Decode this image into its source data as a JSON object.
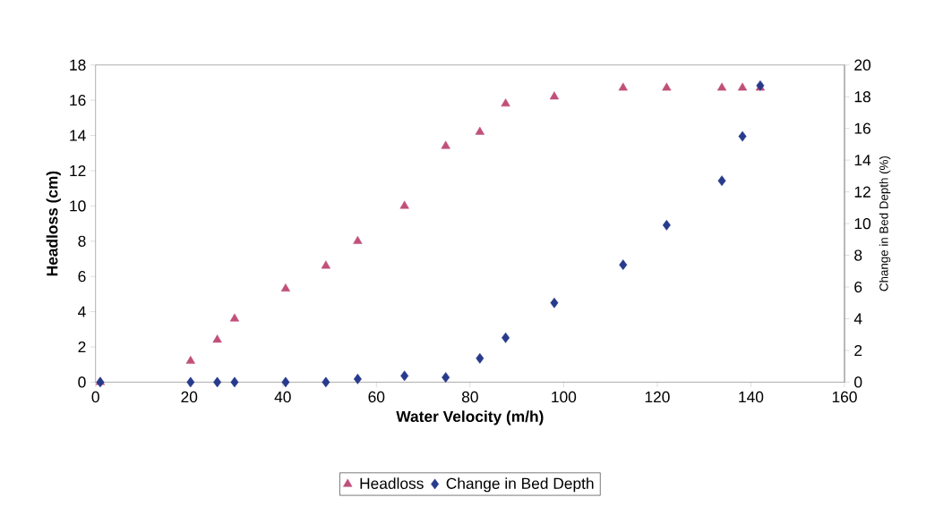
{
  "chart_data": {
    "type": "scatter",
    "xlabel": "Water Velocity (m/h)",
    "ylabel": "Headloss (cm)",
    "y2label": "Change in Bed Depth (%)",
    "xlim": [
      0,
      160
    ],
    "xticks": [
      0,
      20,
      40,
      60,
      80,
      100,
      120,
      140,
      160
    ],
    "ylim": [
      0,
      18
    ],
    "yticks": [
      0,
      2,
      4,
      6,
      8,
      10,
      12,
      14,
      16,
      18
    ],
    "y2lim": [
      0,
      20
    ],
    "y2ticks": [
      0,
      2,
      4,
      6,
      8,
      10,
      12,
      14,
      16,
      18,
      20
    ],
    "legend": "bottom",
    "grid": false,
    "series": [
      {
        "name": "Headloss",
        "color": "#c0507a",
        "marker": "triangle",
        "x": [
          1,
          20.3,
          26,
          29.7,
          40.6,
          49.2,
          56,
          66,
          74.8,
          82.1,
          87.6,
          98,
          112.7,
          122,
          133.8,
          138.2,
          142
        ],
        "values": [
          0,
          1.2,
          2.4,
          3.6,
          5.3,
          6.6,
          8.0,
          10.0,
          13.4,
          14.2,
          15.8,
          16.2,
          16.7,
          16.7,
          16.7,
          16.7,
          16.7
        ]
      },
      {
        "name": "Change in Bed Depth",
        "color": "#283a8c",
        "marker": "diamond",
        "axis": "y2",
        "x": [
          1,
          20.3,
          26,
          29.7,
          40.6,
          49.2,
          56,
          66,
          74.8,
          82.1,
          87.6,
          98,
          112.7,
          122,
          133.8,
          138.2,
          142
        ],
        "values": [
          0,
          0,
          0,
          0,
          0,
          0,
          0.2,
          0.4,
          0.3,
          1.5,
          2.8,
          5.0,
          7.4,
          9.9,
          12.7,
          15.5,
          18.7
        ]
      }
    ]
  }
}
